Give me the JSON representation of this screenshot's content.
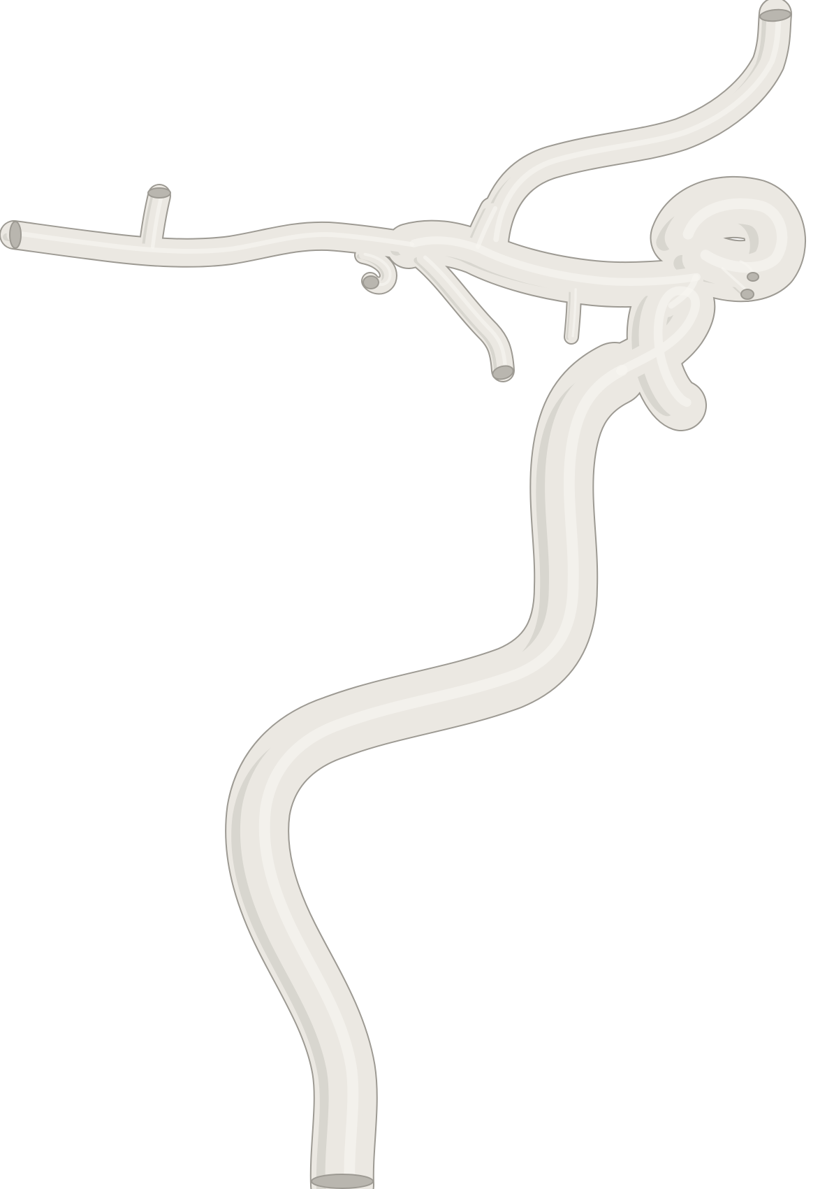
{
  "scene": {
    "background_color": "#ffffff",
    "surface_color": "#ebe8e2",
    "shadow_color": "#c9c6bf",
    "highlight_color": "#f6f5f1",
    "outline_color": "#9d9a93",
    "open_end_color": "#b9b6af"
  }
}
